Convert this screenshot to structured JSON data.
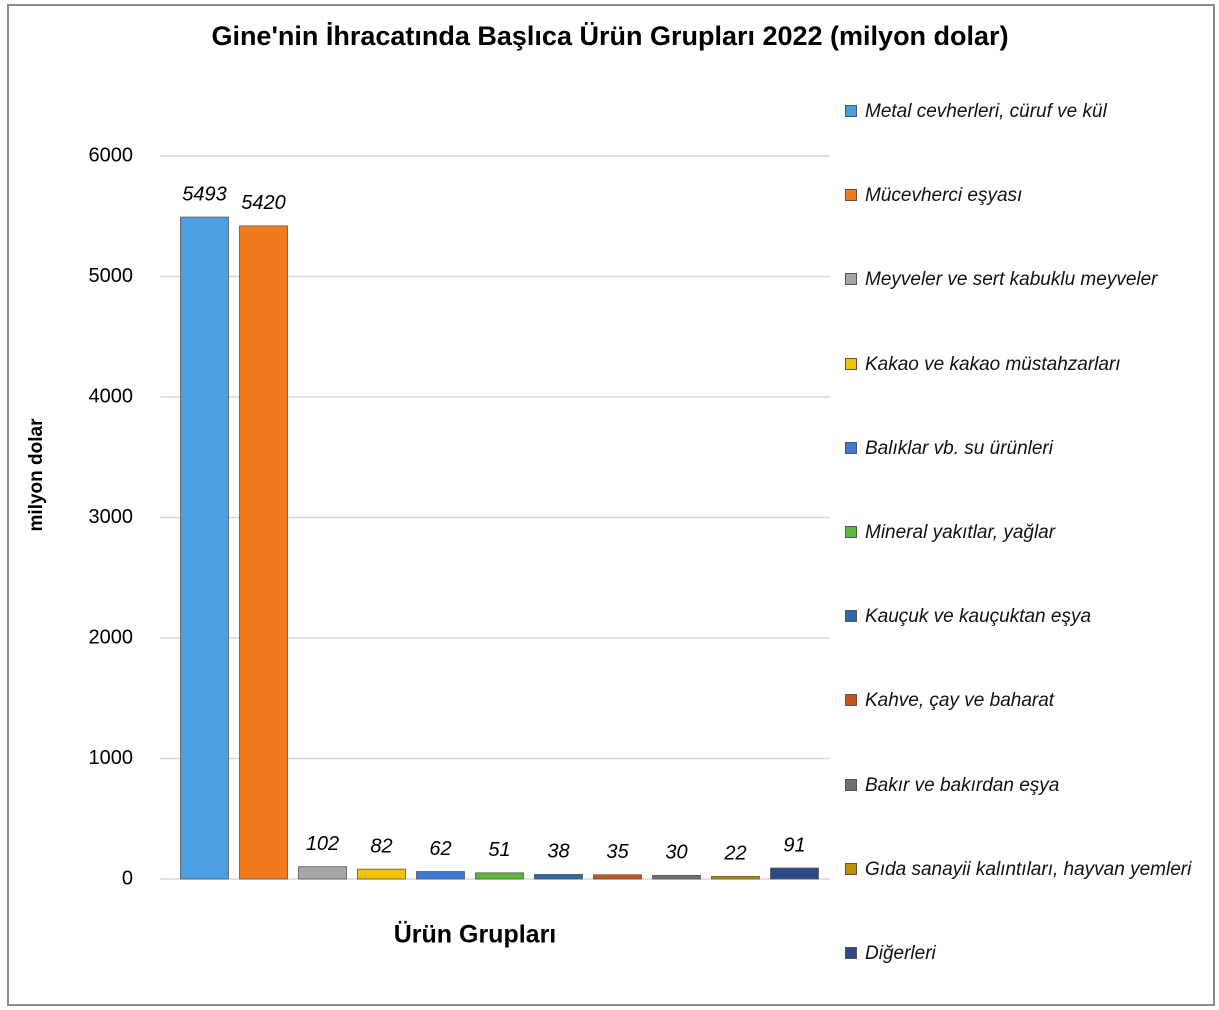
{
  "chart_data": {
    "type": "bar",
    "title": "Gine'nin İhracatında Başlıca Ürün Grupları 2022 (milyon dolar)",
    "x_label": "Ürün Grupları",
    "y_label": "milyon dolar",
    "categories": [
      "Metal cevherleri, cüruf ve kül",
      "Mücevherci eşyası",
      "Meyveler ve sert kabuklu meyveler",
      "Kakao ve kakao müstahzarları",
      "Balıklar vb. su ürünleri",
      "Mineral yakıtlar, yağlar",
      "Kauçuk ve kauçuktan eşya",
      "Kahve, çay ve baharat",
      "Bakır ve bakırdan eşya",
      "Gıda sanayii kalıntıları, hayvan yemleri",
      "Diğerleri"
    ],
    "values": [
      5493,
      5420,
      102,
      82,
      62,
      51,
      38,
      35,
      30,
      22,
      91
    ],
    "colors": [
      "#4a9fe0",
      "#f07a1c",
      "#a6a6a6",
      "#f2c400",
      "#3a7ad4",
      "#5cb83c",
      "#2a6aa8",
      "#c8561a",
      "#707070",
      "#b8900a",
      "#2a4a8a"
    ],
    "ylim": [
      0,
      6000
    ],
    "yticks": [
      0,
      1000,
      2000,
      3000,
      4000,
      5000,
      6000
    ],
    "grid": true,
    "legend": "right"
  }
}
